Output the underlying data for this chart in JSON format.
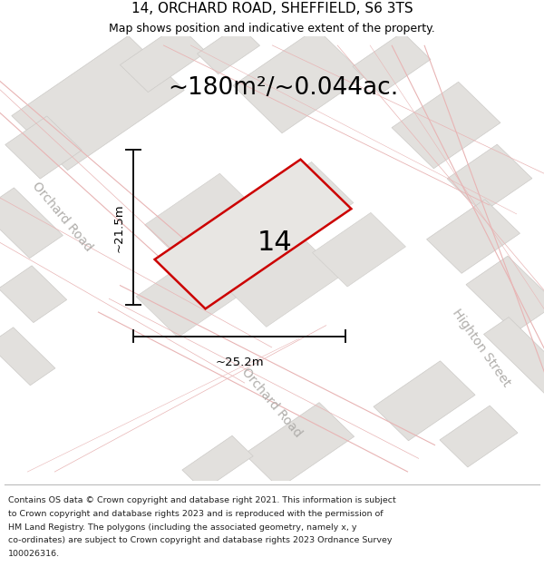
{
  "title": "14, ORCHARD ROAD, SHEFFIELD, S6 3TS",
  "subtitle": "Map shows position and indicative extent of the property.",
  "area_text": "~180m²/~0.044ac.",
  "number_label": "14",
  "dim_vertical": "~21.5m",
  "dim_horizontal": "~25.2m",
  "road_label_1": "Orchard Road",
  "road_label_2": "Orchard Road",
  "road_label_3": "Highton Street",
  "footer_lines": [
    "Contains OS data © Crown copyright and database right 2021. This information is subject",
    "to Crown copyright and database rights 2023 and is reproduced with the permission of",
    "HM Land Registry. The polygons (including the associated geometry, namely x, y",
    "co-ordinates) are subject to Crown copyright and database rights 2023 Ordnance Survey",
    "100026316."
  ],
  "bg_color": "#f5f4f2",
  "block_color": "#e2e0dd",
  "block_edge": "#cccac7",
  "road_line_color": "#e8b4b4",
  "property_fill": "#e8e6e3",
  "property_outline": "#cc0000",
  "line_color": "#111111",
  "road_text_color": "#b0aeab",
  "footer_color": "#222222",
  "title_fontsize": 11,
  "subtitle_fontsize": 9,
  "area_fontsize": 19,
  "number_fontsize": 22,
  "dim_fontsize": 9.5,
  "road_fontsize": 10,
  "footer_fontsize": 6.8
}
